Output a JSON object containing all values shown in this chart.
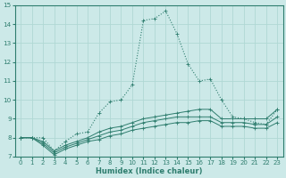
{
  "xlabel": "Humidex (Indice chaleur)",
  "xlim": [
    -0.5,
    23.5
  ],
  "ylim": [
    7,
    15
  ],
  "yticks": [
    7,
    8,
    9,
    10,
    11,
    12,
    13,
    14,
    15
  ],
  "xticks": [
    0,
    1,
    2,
    3,
    4,
    5,
    6,
    7,
    8,
    9,
    10,
    11,
    12,
    13,
    14,
    15,
    16,
    17,
    18,
    19,
    20,
    21,
    22,
    23
  ],
  "bg_color": "#cce9e8",
  "grid_color": "#b0d8d4",
  "line_color": "#2e7d6e",
  "main_series": [
    8.0,
    8.0,
    8.0,
    7.3,
    7.8,
    8.2,
    8.3,
    9.3,
    9.9,
    10.0,
    10.8,
    14.2,
    14.3,
    14.7,
    13.5,
    11.9,
    11.0,
    11.1,
    10.0,
    9.1,
    9.0,
    8.8,
    8.7,
    9.5
  ],
  "band1": [
    8.0,
    8.0,
    7.8,
    7.3,
    7.6,
    7.8,
    8.0,
    8.3,
    8.5,
    8.6,
    8.8,
    9.0,
    9.1,
    9.2,
    9.3,
    9.4,
    9.5,
    9.5,
    9.0,
    9.0,
    9.0,
    9.0,
    9.0,
    9.5
  ],
  "band2": [
    8.0,
    8.0,
    7.7,
    7.2,
    7.5,
    7.7,
    7.9,
    8.1,
    8.3,
    8.4,
    8.6,
    8.8,
    8.9,
    9.0,
    9.1,
    9.1,
    9.1,
    9.1,
    8.8,
    8.8,
    8.8,
    8.7,
    8.7,
    9.1
  ],
  "band3": [
    8.0,
    8.0,
    7.6,
    7.1,
    7.4,
    7.6,
    7.8,
    7.9,
    8.1,
    8.2,
    8.4,
    8.5,
    8.6,
    8.7,
    8.8,
    8.8,
    8.9,
    8.9,
    8.6,
    8.6,
    8.6,
    8.5,
    8.5,
    8.8
  ]
}
